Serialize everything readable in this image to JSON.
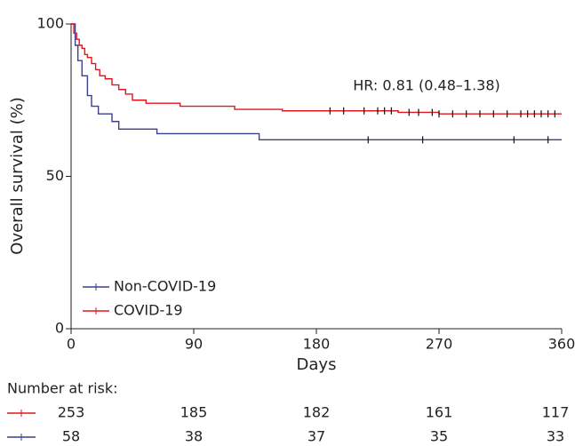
{
  "chart_data": {
    "type": "step",
    "y_label": "Overall survival (%)",
    "x_label": "Days",
    "annotation": "HR: 0.81 (0.48–1.38)",
    "xlim": [
      0,
      360
    ],
    "xticks": [
      0,
      90,
      180,
      270,
      360
    ],
    "ylim": [
      0,
      100
    ],
    "yticks": [
      0,
      50,
      100
    ],
    "series": [
      {
        "name": "Non-COVID-19",
        "color": "#3b3f8f",
        "x": [
          0,
          3,
          5,
          8,
          12,
          15,
          20,
          30,
          35,
          63,
          138,
          360
        ],
        "values": [
          100,
          93,
          88,
          83,
          76.5,
          73,
          70.5,
          68,
          65.5,
          64,
          62,
          62
        ],
        "censored": [
          218,
          258,
          325,
          350
        ]
      },
      {
        "name": "COVID-19",
        "color": "#e3151d",
        "x": [
          0,
          2,
          4,
          6,
          8,
          10,
          12,
          15,
          18,
          21,
          25,
          30,
          35,
          40,
          45,
          55,
          80,
          120,
          155,
          240,
          270,
          360
        ],
        "values": [
          100,
          97,
          95,
          93,
          92,
          90,
          89,
          87,
          85,
          83,
          82,
          80,
          78.5,
          77,
          75,
          74,
          73,
          72,
          71.5,
          71,
          70.5,
          70.5
        ],
        "censored": [
          190,
          200,
          215,
          225,
          230,
          235,
          248,
          255,
          265,
          270,
          280,
          290,
          300,
          310,
          320,
          330,
          335,
          340,
          345,
          350,
          355
        ]
      }
    ],
    "risk_table": {
      "title": "Number at risk:",
      "rows": [
        {
          "color": "#e3151d",
          "values": [
            253,
            185,
            182,
            161,
            117
          ]
        },
        {
          "color": "#3b3f8f",
          "values": [
            58,
            38,
            37,
            35,
            33
          ]
        }
      ]
    }
  }
}
